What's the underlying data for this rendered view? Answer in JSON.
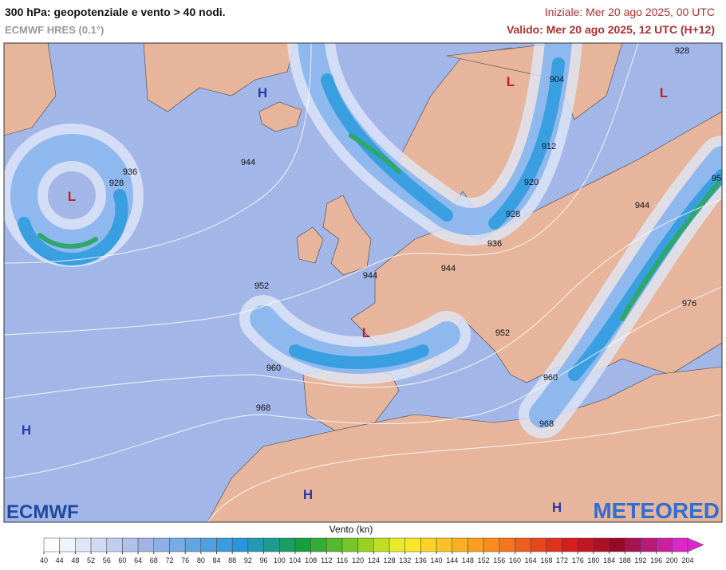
{
  "header": {
    "title": "300 hPa: geopotenziale e vento > 40 nodi.",
    "model": "ECMWF HRES (0.1°)",
    "init": "Iniziale: Mer 20 ago 2025, 00 UTC",
    "valid": "Valido: Mer 20 ago 2025, 12 UTC (H+12)"
  },
  "map": {
    "contour_labels": [
      "928",
      "904",
      "936",
      "928",
      "944",
      "912",
      "920",
      "928",
      "936",
      "944",
      "944",
      "952",
      "944",
      "952",
      "960",
      "976",
      "960",
      "968",
      "968",
      "95"
    ],
    "centers": [
      "H",
      "L",
      "L",
      "L",
      "L",
      "H",
      "H",
      "H"
    ],
    "logos": {
      "left": "ECMWF",
      "right": "METEORED"
    }
  },
  "legend": {
    "title": "Vento (kn)",
    "ticks": [
      40,
      44,
      48,
      52,
      56,
      60,
      64,
      68,
      72,
      76,
      80,
      84,
      88,
      92,
      96,
      100,
      104,
      108,
      112,
      116,
      120,
      124,
      128,
      132,
      136,
      140,
      144,
      148,
      152,
      156,
      160,
      164,
      168,
      172,
      176,
      180,
      184,
      188,
      192,
      196,
      200,
      204
    ]
  }
}
